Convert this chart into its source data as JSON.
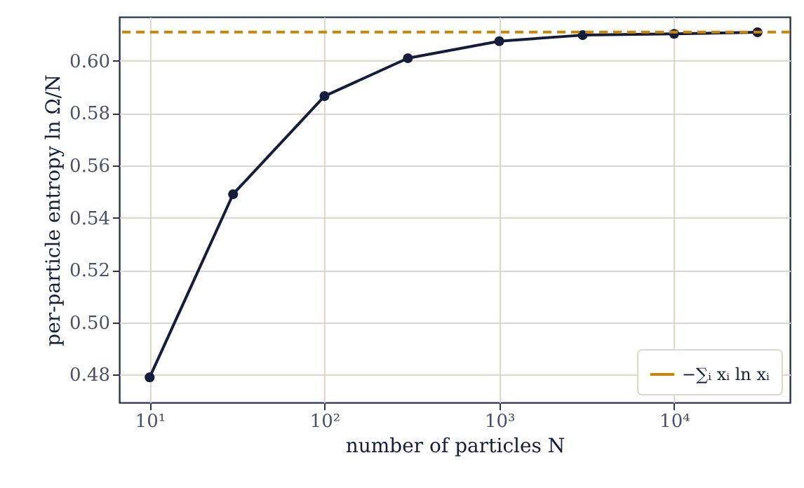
{
  "chart_data": {
    "type": "line",
    "xlabel": "number of particles N",
    "ylabel": "per-particle entropy ln Ω/N",
    "x": [
      10,
      30,
      100,
      300,
      1000,
      3000,
      10000,
      30000
    ],
    "series": [
      {
        "color": "#141e3c",
        "values": [
          0.479,
          0.549,
          0.5865,
          0.601,
          0.6075,
          0.6098,
          0.6103,
          0.6109
        ]
      }
    ],
    "log": "x",
    "xlim": [
      6.7,
      46000
    ],
    "xticks": [
      {
        "value": 10,
        "label": "10¹"
      },
      {
        "value": 100,
        "label": "10²"
      },
      {
        "value": 1000,
        "label": "10³"
      },
      {
        "value": 10000,
        "label": "10⁴"
      }
    ],
    "ylim": [
      0.4694,
      0.6168
    ],
    "yticks": [
      0.48,
      {
        "value": 0.5,
        "label": "0.50"
      },
      0.52,
      0.54,
      0.56,
      0.58,
      {
        "value": 0.6,
        "label": "0.60"
      }
    ],
    "ref_lines": [
      {
        "axis": "y",
        "value": 0.611,
        "label": "−∑ᵢ xᵢ ln xᵢ",
        "color": "#c8860a",
        "line_style": "dashed"
      }
    ],
    "grid": true,
    "legend": "bottom right",
    "marker": "circle",
    "line_style": "solid"
  }
}
